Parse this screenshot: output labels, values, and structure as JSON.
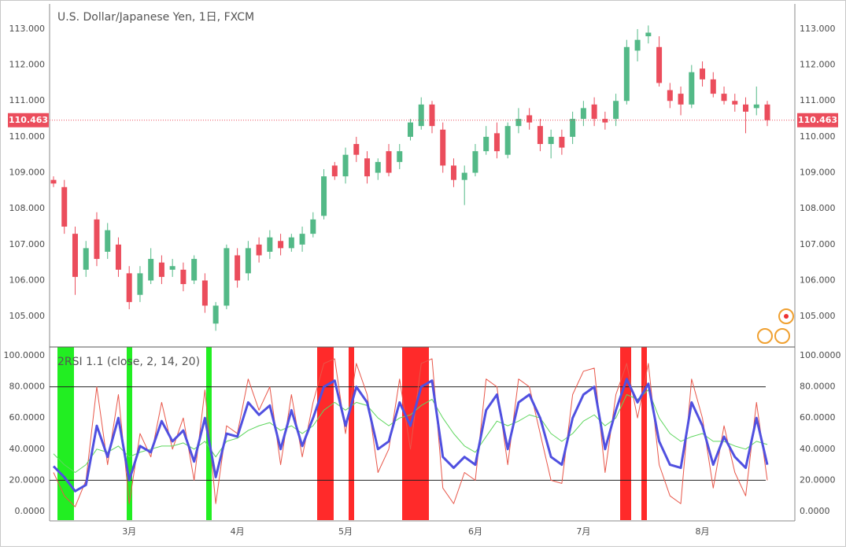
{
  "chart_data": [
    {
      "type": "candlestick",
      "title": "U.S. Dollar/Japanese Yen, 1日, FXCM",
      "up_color": "#53b987",
      "down_color": "#eb4d5c",
      "ylim": [
        104.17,
        113.7
      ],
      "yticks": [
        {
          "value": 105,
          "label": "105.000"
        },
        {
          "value": 106,
          "label": "106.000"
        },
        {
          "value": 107,
          "label": "107.000"
        },
        {
          "value": 108,
          "label": "108.000"
        },
        {
          "value": 109,
          "label": "109.000"
        },
        {
          "value": 110,
          "label": "110.000"
        },
        {
          "value": 111,
          "label": "111.000"
        },
        {
          "value": 112,
          "label": "112.000"
        },
        {
          "value": 113,
          "label": "113.000"
        }
      ],
      "last_price": {
        "value": 110.463,
        "label": "110.463"
      },
      "open": [
        108.8,
        108.6,
        107.3,
        106.3,
        107.7,
        106.8,
        107.0,
        106.2,
        105.6,
        106.0,
        106.5,
        106.3,
        106.3,
        106.0,
        106.0,
        104.8,
        105.3,
        106.7,
        106.2,
        107.0,
        106.8,
        107.1,
        106.9,
        107.0,
        107.3,
        107.8,
        109.2,
        108.9,
        109.8,
        109.4,
        109.0,
        109.6,
        109.3,
        110.0,
        110.3,
        110.9,
        110.2,
        109.2,
        108.8,
        109.0,
        109.6,
        110.1,
        109.5,
        110.3,
        110.6,
        110.3,
        109.8,
        110.0,
        110.0,
        110.5,
        110.9,
        110.5,
        110.5,
        111.0,
        112.4,
        112.8,
        112.5,
        111.3,
        111.2,
        110.9,
        111.9,
        111.6,
        111.2,
        111.0,
        110.9,
        110.8,
        110.9
      ],
      "high": [
        108.9,
        108.8,
        107.5,
        107.1,
        107.9,
        107.6,
        107.2,
        106.4,
        106.4,
        106.9,
        106.7,
        106.6,
        106.5,
        106.7,
        106.2,
        105.4,
        107.0,
        106.9,
        107.1,
        107.2,
        107.4,
        107.3,
        107.3,
        107.5,
        107.9,
        109.1,
        109.3,
        109.7,
        110.0,
        109.6,
        109.4,
        109.8,
        109.8,
        110.5,
        111.1,
        111.0,
        110.4,
        109.4,
        109.2,
        109.8,
        110.3,
        110.4,
        110.4,
        110.8,
        110.8,
        110.5,
        110.2,
        110.2,
        110.7,
        111.0,
        111.1,
        110.7,
        111.2,
        112.7,
        113.0,
        113.1,
        112.8,
        111.5,
        111.4,
        112.0,
        112.1,
        111.8,
        111.4,
        111.2,
        111.1,
        111.4,
        111.0
      ],
      "low": [
        108.6,
        107.3,
        105.6,
        106.1,
        106.4,
        106.6,
        106.1,
        105.2,
        105.4,
        105.9,
        105.9,
        106.1,
        105.7,
        105.9,
        105.1,
        104.6,
        105.2,
        105.8,
        106.0,
        106.5,
        106.6,
        106.7,
        106.8,
        106.8,
        107.2,
        107.7,
        108.8,
        108.7,
        109.3,
        108.7,
        108.8,
        108.9,
        109.1,
        109.9,
        110.2,
        110.1,
        109.0,
        108.6,
        108.1,
        108.9,
        109.5,
        109.4,
        109.4,
        110.1,
        110.2,
        109.6,
        109.4,
        109.5,
        109.8,
        110.3,
        110.3,
        110.2,
        110.3,
        110.9,
        112.1,
        112.6,
        111.4,
        110.8,
        110.6,
        110.8,
        111.4,
        111.1,
        110.9,
        110.7,
        110.1,
        110.6,
        110.3
      ],
      "close": [
        108.7,
        107.5,
        106.1,
        106.9,
        106.6,
        107.4,
        106.3,
        105.4,
        106.2,
        106.6,
        106.1,
        106.4,
        105.9,
        106.6,
        105.3,
        105.3,
        106.9,
        106.0,
        106.9,
        106.7,
        107.2,
        106.9,
        107.2,
        107.3,
        107.7,
        108.9,
        108.9,
        109.5,
        109.5,
        108.9,
        109.3,
        109.0,
        109.6,
        110.4,
        110.9,
        110.3,
        109.2,
        108.8,
        109.0,
        109.6,
        110.0,
        109.6,
        110.3,
        110.5,
        110.4,
        109.8,
        110.0,
        109.7,
        110.5,
        110.8,
        110.5,
        110.4,
        111.0,
        112.5,
        112.7,
        112.9,
        111.5,
        111.0,
        110.9,
        111.8,
        111.6,
        111.2,
        111.0,
        110.9,
        110.7,
        110.9,
        110.463
      ]
    },
    {
      "type": "line",
      "title": "2RSI 1.1 (close, 2, 14, 20)",
      "ylim": [
        -6.06,
        105.56
      ],
      "yticks": [
        {
          "value": 0,
          "label": "0.0000"
        },
        {
          "value": 20,
          "label": "20.0000"
        },
        {
          "value": 40,
          "label": "40.0000"
        },
        {
          "value": 60,
          "label": "60.0000"
        },
        {
          "value": 80,
          "label": "80.0000"
        },
        {
          "value": 100,
          "label": "100.0000"
        }
      ],
      "reference_lines": [
        20,
        80
      ],
      "categories": [
        null,
        null,
        null,
        null,
        null,
        null,
        null,
        "3月",
        null,
        null,
        null,
        null,
        null,
        null,
        null,
        null,
        null,
        "4月",
        null,
        null,
        null,
        null,
        null,
        null,
        null,
        null,
        null,
        "5月",
        null,
        null,
        null,
        null,
        null,
        null,
        null,
        null,
        null,
        null,
        null,
        "6月",
        null,
        null,
        null,
        null,
        null,
        null,
        null,
        null,
        null,
        "7月",
        null,
        null,
        null,
        null,
        null,
        null,
        null,
        null,
        null,
        null,
        "8月",
        null,
        null,
        null,
        null,
        null,
        null
      ],
      "series": [
        {
          "color": "#e8574a",
          "width": 1,
          "values": [
            25,
            10,
            3,
            20,
            80,
            30,
            75,
            5,
            50,
            35,
            70,
            40,
            60,
            20,
            78,
            5,
            55,
            50,
            85,
            65,
            80,
            30,
            75,
            35,
            70,
            95,
            98,
            50,
            95,
            75,
            25,
            40,
            85,
            40,
            95,
            98,
            15,
            5,
            25,
            20,
            85,
            80,
            30,
            85,
            80,
            50,
            20,
            18,
            75,
            90,
            92,
            25,
            75,
            95,
            60,
            95,
            30,
            10,
            5,
            85,
            60,
            15,
            55,
            25,
            10,
            70,
            20
          ]
        },
        {
          "color": "#5ed65e",
          "width": 1,
          "values": [
            37,
            30,
            25,
            30,
            40,
            38,
            42,
            35,
            38,
            40,
            42,
            42,
            44,
            40,
            45,
            35,
            45,
            47,
            52,
            55,
            57,
            52,
            55,
            50,
            55,
            65,
            70,
            65,
            70,
            68,
            60,
            55,
            60,
            62,
            68,
            72,
            60,
            50,
            42,
            38,
            48,
            58,
            55,
            58,
            62,
            60,
            50,
            45,
            50,
            58,
            62,
            55,
            60,
            75,
            72,
            78,
            60,
            50,
            45,
            48,
            50,
            45,
            45,
            42,
            40,
            45,
            43
          ]
        },
        {
          "color": "#5050e0",
          "width": 3,
          "values": [
            29,
            22,
            13,
            17,
            55,
            35,
            60,
            20,
            42,
            38,
            58,
            45,
            52,
            32,
            60,
            22,
            50,
            48,
            70,
            62,
            68,
            40,
            65,
            42,
            60,
            80,
            84,
            55,
            80,
            70,
            40,
            45,
            70,
            55,
            80,
            84,
            35,
            28,
            35,
            30,
            65,
            75,
            40,
            70,
            75,
            60,
            35,
            30,
            60,
            75,
            80,
            40,
            65,
            85,
            70,
            82,
            45,
            30,
            28,
            70,
            55,
            30,
            48,
            35,
            28,
            60,
            30
          ]
        }
      ]
    }
  ]
}
